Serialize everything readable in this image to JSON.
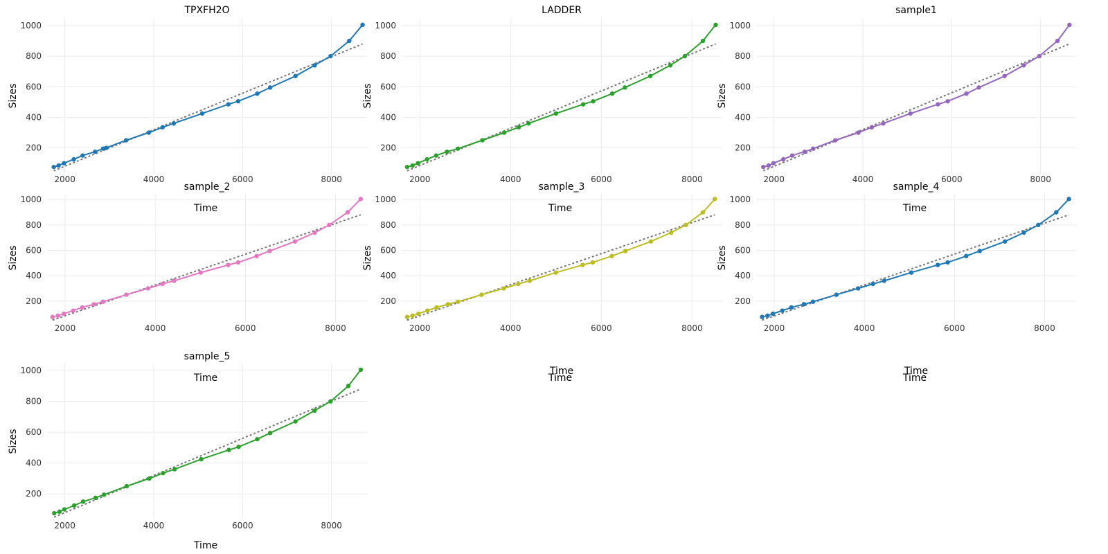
{
  "figure": {
    "xlabel": "Time",
    "ylabel": "Sizes"
  },
  "chart_data": [
    {
      "type": "line",
      "title": "TPXFH2O",
      "color": "#1f77b4",
      "xlabel": "Time",
      "ylabel": "Sizes",
      "xlim": [
        1600,
        8800
      ],
      "ylim": [
        35,
        1045
      ],
      "xticks": [
        2000,
        4000,
        6000,
        8000
      ],
      "yticks": [
        200,
        400,
        600,
        800,
        1000
      ],
      "grid": true,
      "x": [
        1750,
        1860,
        1980,
        2200,
        2400,
        2680,
        2860,
        2930,
        3380,
        3890,
        4200,
        4450,
        5090,
        5680,
        5900,
        6330,
        6620,
        7190,
        7620,
        7980,
        8400,
        8700
      ],
      "y": [
        75,
        85,
        100,
        125,
        150,
        175,
        195,
        200,
        250,
        300,
        335,
        360,
        425,
        485,
        505,
        555,
        595,
        670,
        740,
        800,
        900,
        1005
      ],
      "fit": {
        "x": [
          1750,
          8700
        ],
        "y": [
          50,
          880
        ]
      }
    },
    {
      "type": "line",
      "title": "LADDER",
      "color": "#2ca02c",
      "xlabel": "Time",
      "ylabel": "Sizes",
      "xlim": [
        1600,
        8650
      ],
      "ylim": [
        35,
        1045
      ],
      "xticks": [
        2000,
        4000,
        6000,
        8000
      ],
      "yticks": [
        200,
        400,
        600,
        800,
        1000
      ],
      "grid": true,
      "x": [
        1720,
        1840,
        1960,
        2160,
        2360,
        2600,
        2840,
        3380,
        3860,
        4180,
        4400,
        5000,
        5600,
        5820,
        6240,
        6520,
        7080,
        7520,
        7840,
        8240,
        8520
      ],
      "y": [
        75,
        85,
        100,
        125,
        150,
        175,
        195,
        250,
        300,
        335,
        360,
        425,
        485,
        505,
        555,
        595,
        670,
        740,
        800,
        900,
        1005
      ],
      "fit": {
        "x": [
          1720,
          8520
        ],
        "y": [
          50,
          880
        ]
      }
    },
    {
      "type": "line",
      "title": "sample1",
      "color": "#9467bd",
      "xlabel": "Time",
      "ylabel": "Sizes",
      "xlim": [
        1600,
        8800
      ],
      "ylim": [
        35,
        1045
      ],
      "xticks": [
        2000,
        4000,
        6000,
        8000
      ],
      "yticks": [
        200,
        400,
        600,
        800,
        1000
      ],
      "grid": true,
      "x": [
        1760,
        1880,
        1990,
        2210,
        2410,
        2690,
        2880,
        3380,
        3900,
        4200,
        4460,
        5070,
        5690,
        5910,
        6330,
        6610,
        7190,
        7620,
        7970,
        8380,
        8650
      ],
      "y": [
        75,
        85,
        100,
        125,
        150,
        175,
        195,
        250,
        300,
        335,
        360,
        425,
        485,
        505,
        555,
        595,
        670,
        740,
        800,
        900,
        1005
      ],
      "fit": {
        "x": [
          1760,
          8650
        ],
        "y": [
          50,
          880
        ]
      }
    },
    {
      "type": "line",
      "title": "sample_2",
      "color": "#e377c2",
      "xlabel": "Time",
      "ylabel": "Sizes",
      "xlim": [
        1600,
        8700
      ],
      "ylim": [
        35,
        1045
      ],
      "xticks": [
        2000,
        4000,
        6000,
        8000
      ],
      "yticks": [
        200,
        400,
        600,
        800,
        1000
      ],
      "grid": true,
      "x": [
        1720,
        1840,
        1970,
        2180,
        2380,
        2640,
        2840,
        3360,
        3840,
        4160,
        4420,
        5010,
        5620,
        5840,
        6250,
        6540,
        7100,
        7540,
        7860,
        8270,
        8560
      ],
      "y": [
        75,
        85,
        100,
        125,
        150,
        175,
        195,
        250,
        300,
        335,
        360,
        425,
        485,
        505,
        555,
        595,
        670,
        740,
        800,
        900,
        1005
      ],
      "fit": {
        "x": [
          1720,
          8560
        ],
        "y": [
          50,
          880
        ]
      }
    },
    {
      "type": "line",
      "title": "sample_3",
      "color": "#bcbd22",
      "xlabel": "Time",
      "ylabel": "Sizes",
      "xlim": [
        1600,
        8650
      ],
      "ylim": [
        35,
        1045
      ],
      "xticks": [
        2000,
        4000,
        6000,
        8000
      ],
      "yticks": [
        200,
        400,
        600,
        800,
        1000
      ],
      "grid": true,
      "x": [
        1720,
        1840,
        1970,
        2170,
        2370,
        2620,
        2840,
        3360,
        3850,
        4170,
        4420,
        5000,
        5590,
        5810,
        6230,
        6530,
        7090,
        7540,
        7860,
        8240,
        8500
      ],
      "y": [
        75,
        85,
        100,
        125,
        150,
        175,
        195,
        250,
        300,
        335,
        360,
        425,
        485,
        505,
        555,
        595,
        670,
        740,
        800,
        900,
        1005
      ],
      "fit": {
        "x": [
          1720,
          8500
        ],
        "y": [
          50,
          880
        ]
      }
    },
    {
      "type": "line",
      "title": "sample_4",
      "color": "#1f77b4",
      "xlabel": "Time",
      "ylabel": "Sizes",
      "xlim": [
        1600,
        8700
      ],
      "ylim": [
        35,
        1045
      ],
      "xticks": [
        2000,
        4000,
        6000,
        8000
      ],
      "yticks": [
        200,
        400,
        600,
        800,
        1000
      ],
      "grid": true,
      "x": [
        1730,
        1850,
        1970,
        2180,
        2380,
        2660,
        2860,
        3380,
        3860,
        4190,
        4440,
        5040,
        5630,
        5850,
        6260,
        6560,
        7120,
        7540,
        7860,
        8260,
        8540
      ],
      "y": [
        75,
        85,
        100,
        125,
        150,
        175,
        195,
        250,
        300,
        335,
        360,
        425,
        485,
        505,
        555,
        595,
        670,
        740,
        800,
        900,
        1005
      ],
      "fit": {
        "x": [
          1730,
          8540
        ],
        "y": [
          50,
          880
        ]
      }
    },
    {
      "type": "line",
      "title": "sample_5",
      "color": "#2ca02c",
      "xlabel": "Time",
      "ylabel": "Sizes",
      "xlim": [
        1600,
        8800
      ],
      "ylim": [
        35,
        1045
      ],
      "xticks": [
        2000,
        4000,
        6000,
        8000
      ],
      "yticks": [
        200,
        400,
        600,
        800,
        1000
      ],
      "grid": true,
      "x": [
        1760,
        1880,
        1990,
        2210,
        2410,
        2690,
        2880,
        3390,
        3900,
        4210,
        4470,
        5070,
        5690,
        5910,
        6330,
        6620,
        7190,
        7620,
        7980,
        8380,
        8660
      ],
      "y": [
        75,
        85,
        100,
        125,
        150,
        175,
        195,
        250,
        300,
        335,
        360,
        425,
        485,
        505,
        555,
        595,
        670,
        740,
        800,
        900,
        1005
      ],
      "fit": {
        "x": [
          1760,
          8660
        ],
        "y": [
          50,
          880
        ]
      }
    }
  ]
}
